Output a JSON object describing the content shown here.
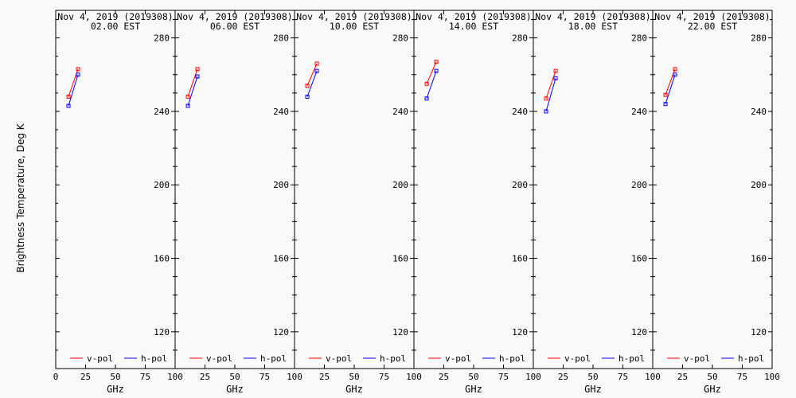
{
  "ylabel": "Brightness Temperature, Deg K",
  "xlabel": "GHz",
  "colors": {
    "vpol": "#ff0000",
    "hpol": "#0000ff",
    "axis": "#000000",
    "background": "#f9f9f9"
  },
  "chart_data": [
    {
      "type": "line",
      "title": "Nov  4, 2019 (2019308)",
      "subtitle": "02.00 EST",
      "xlabel": "GHz",
      "ylabel": "Brightness Temperature, Deg K",
      "xlim": [
        0,
        100
      ],
      "ylim": [
        100,
        295
      ],
      "xticks": [
        0,
        25,
        50,
        75,
        100
      ],
      "yticks": [
        120,
        160,
        200,
        240,
        280
      ],
      "legend": "bottom",
      "series": [
        {
          "name": "v-pol",
          "color": "#ff0000",
          "x": [
            10.7,
            18.7
          ],
          "y": [
            248,
            263
          ]
        },
        {
          "name": "h-pol",
          "color": "#0000ff",
          "x": [
            10.7,
            18.7
          ],
          "y": [
            243,
            260
          ]
        }
      ]
    },
    {
      "type": "line",
      "title": "Nov  4, 2019 (2019308)",
      "subtitle": "06.00 EST",
      "xlabel": "GHz",
      "xlim": [
        0,
        100
      ],
      "ylim": [
        100,
        295
      ],
      "xticks": [
        0,
        25,
        50,
        75,
        100
      ],
      "yticks": [
        120,
        160,
        200,
        240,
        280
      ],
      "legend": "bottom",
      "series": [
        {
          "name": "v-pol",
          "color": "#ff0000",
          "x": [
            10.7,
            18.7
          ],
          "y": [
            248,
            263
          ]
        },
        {
          "name": "h-pol",
          "color": "#0000ff",
          "x": [
            10.7,
            18.7
          ],
          "y": [
            243,
            259
          ]
        }
      ]
    },
    {
      "type": "line",
      "title": "Nov  4, 2019 (2019308)",
      "subtitle": "10.00 EST",
      "xlabel": "GHz",
      "xlim": [
        0,
        100
      ],
      "ylim": [
        100,
        295
      ],
      "xticks": [
        0,
        25,
        50,
        75,
        100
      ],
      "yticks": [
        120,
        160,
        200,
        240,
        280
      ],
      "legend": "bottom",
      "series": [
        {
          "name": "v-pol",
          "color": "#ff0000",
          "x": [
            10.7,
            18.7
          ],
          "y": [
            254,
            266
          ]
        },
        {
          "name": "h-pol",
          "color": "#0000ff",
          "x": [
            10.7,
            18.7
          ],
          "y": [
            248,
            262
          ]
        }
      ]
    },
    {
      "type": "line",
      "title": "Nov  4, 2019 (2019308)",
      "subtitle": "14.00 EST",
      "xlabel": "GHz",
      "xlim": [
        0,
        100
      ],
      "ylim": [
        100,
        295
      ],
      "xticks": [
        0,
        25,
        50,
        75,
        100
      ],
      "yticks": [
        120,
        160,
        200,
        240,
        280
      ],
      "legend": "bottom",
      "series": [
        {
          "name": "v-pol",
          "color": "#ff0000",
          "x": [
            10.7,
            18.7
          ],
          "y": [
            255,
            267
          ]
        },
        {
          "name": "h-pol",
          "color": "#0000ff",
          "x": [
            10.7,
            18.7
          ],
          "y": [
            247,
            262
          ]
        }
      ]
    },
    {
      "type": "line",
      "title": "Nov  4, 2019 (2019308)",
      "subtitle": "18.00 EST",
      "xlabel": "GHz",
      "xlim": [
        0,
        100
      ],
      "ylim": [
        100,
        295
      ],
      "xticks": [
        0,
        25,
        50,
        75,
        100
      ],
      "yticks": [
        120,
        160,
        200,
        240,
        280
      ],
      "legend": "bottom",
      "series": [
        {
          "name": "v-pol",
          "color": "#ff0000",
          "x": [
            10.7,
            18.7
          ],
          "y": [
            247,
            262
          ]
        },
        {
          "name": "h-pol",
          "color": "#0000ff",
          "x": [
            10.7,
            18.7
          ],
          "y": [
            240,
            258
          ]
        }
      ]
    },
    {
      "type": "line",
      "title": "Nov  4, 2019 (2019308)",
      "subtitle": "22.00 EST",
      "xlabel": "GHz",
      "xlim": [
        0,
        100
      ],
      "ylim": [
        100,
        295
      ],
      "xticks": [
        0,
        25,
        50,
        75,
        100
      ],
      "yticks": [
        120,
        160,
        200,
        240,
        280
      ],
      "legend": "bottom",
      "series": [
        {
          "name": "v-pol",
          "color": "#ff0000",
          "x": [
            10.7,
            18.7
          ],
          "y": [
            249,
            263
          ]
        },
        {
          "name": "h-pol",
          "color": "#0000ff",
          "x": [
            10.7,
            18.7
          ],
          "y": [
            244,
            260
          ]
        }
      ]
    }
  ]
}
